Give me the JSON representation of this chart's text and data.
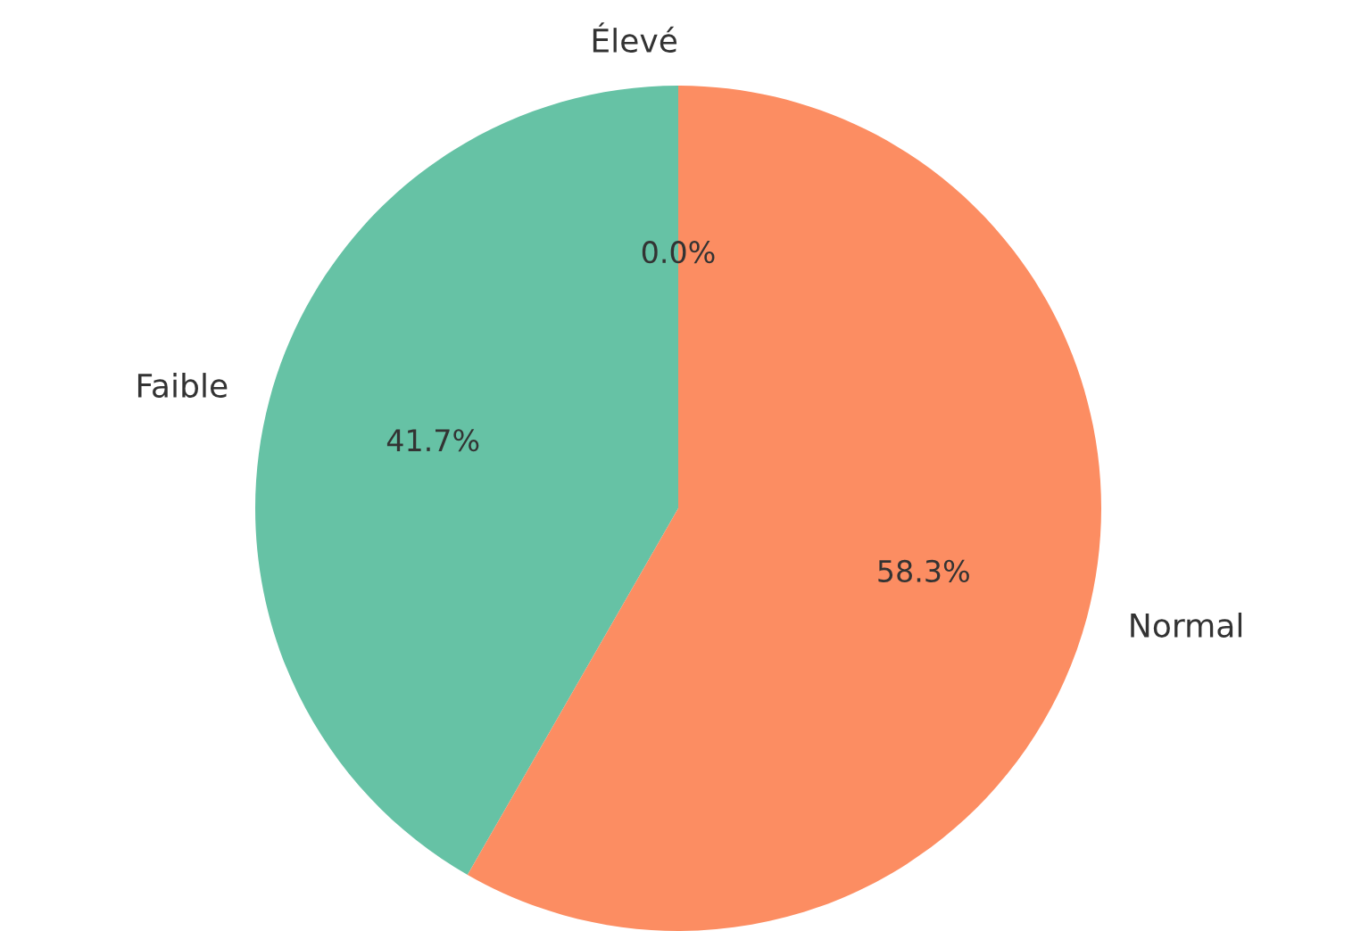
{
  "chart_data": {
    "type": "pie",
    "categories": [
      "Faible",
      "Normal",
      "Élevé"
    ],
    "values": [
      41.7,
      58.3,
      0.0
    ],
    "colors": [
      "#66c2a5",
      "#fc8d62",
      "#8da0cb"
    ],
    "value_labels": [
      "41.7%",
      "58.3%",
      "0.0%"
    ]
  }
}
